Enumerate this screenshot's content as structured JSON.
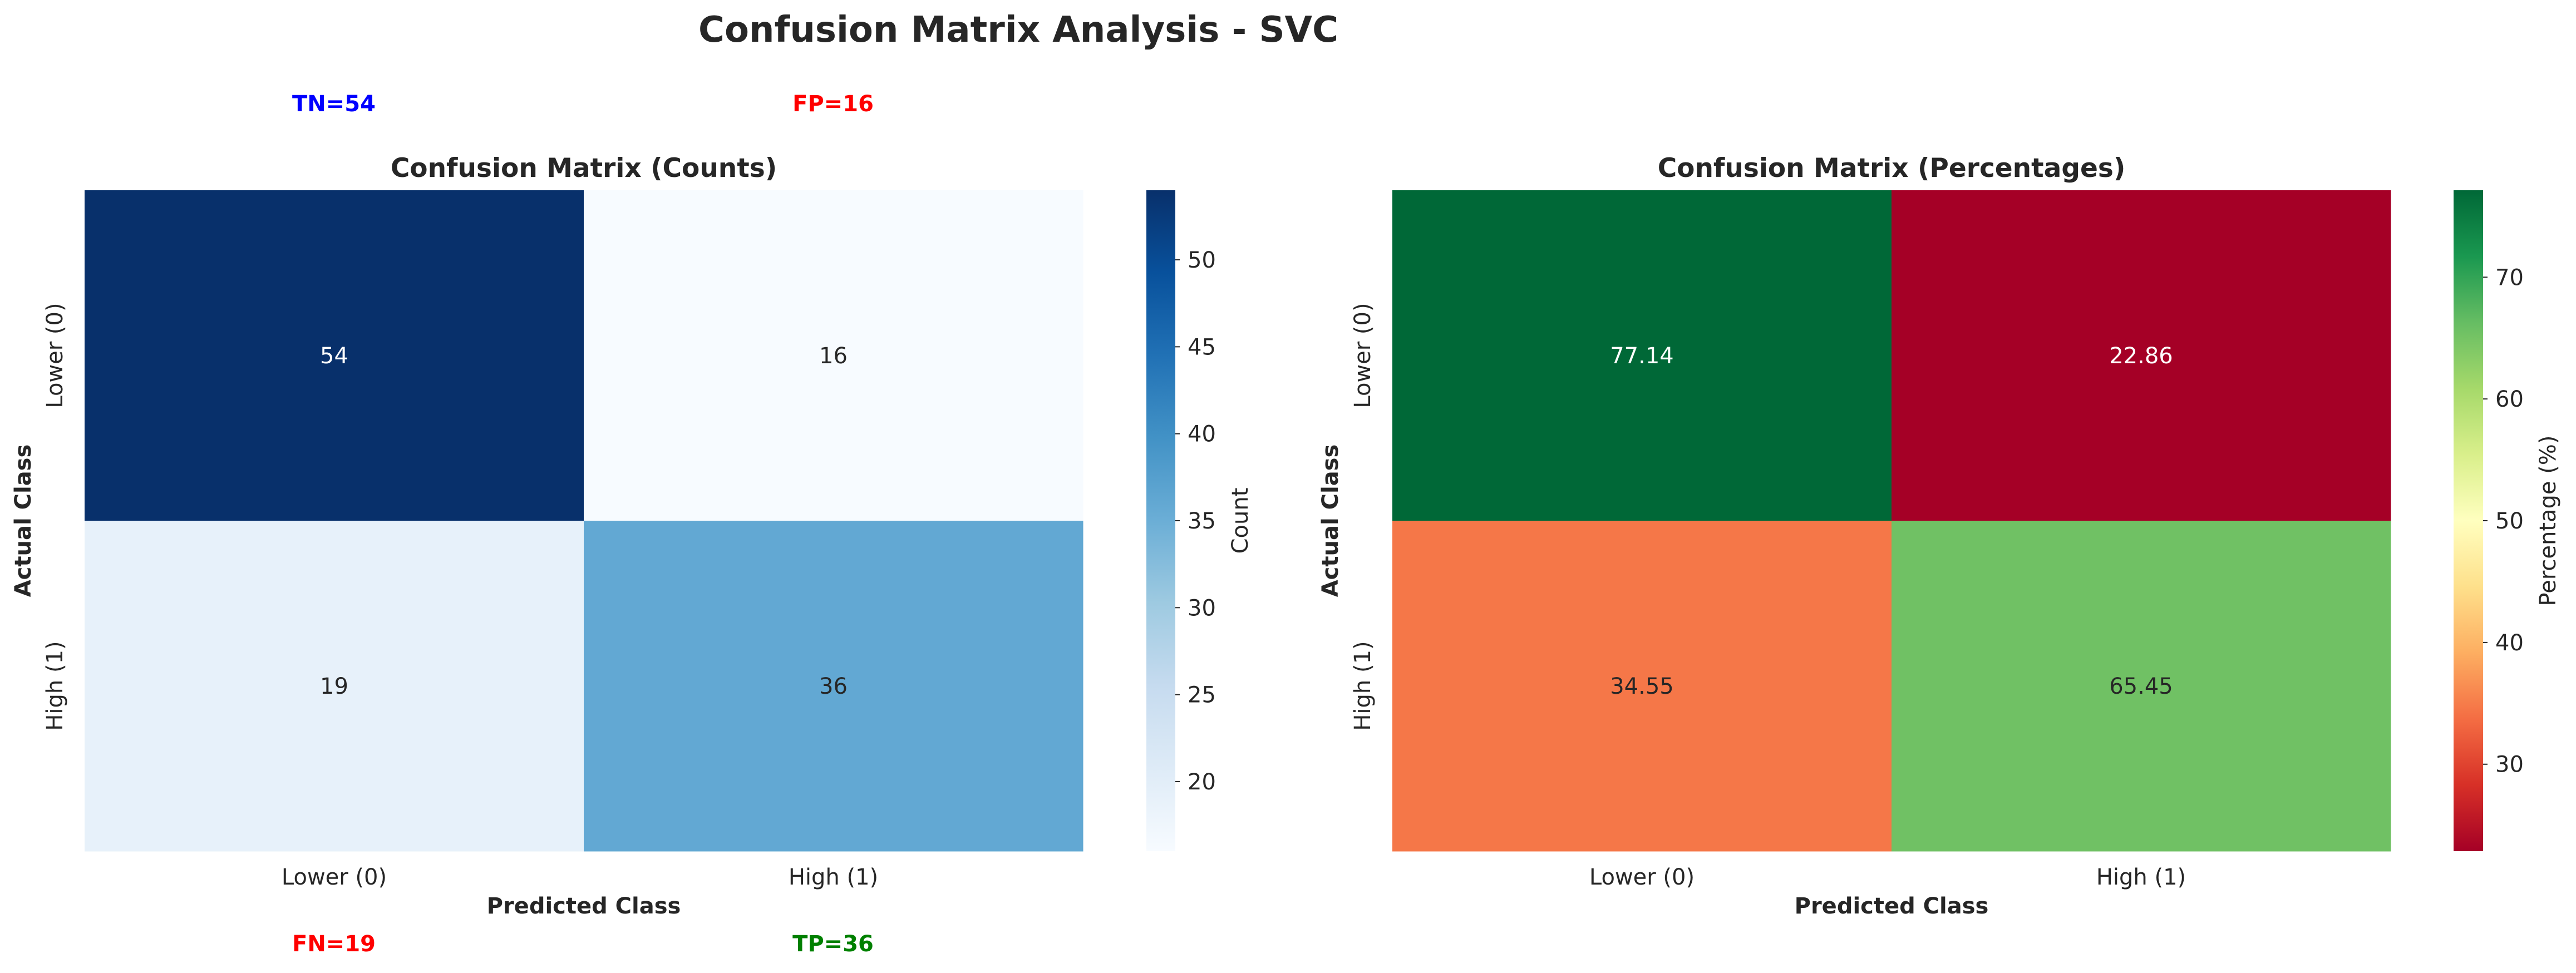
{
  "figure": {
    "title": "Confusion Matrix Analysis - SVC"
  },
  "annotations": [
    {
      "text": "TN=54",
      "color": "#0000ff"
    },
    {
      "text": "FP=16",
      "color": "#ff0000"
    },
    {
      "text": "FN=19",
      "color": "#ff0000"
    },
    {
      "text": "TP=36",
      "color": "#008000"
    }
  ],
  "chart_data": [
    {
      "type": "heatmap",
      "title": "Confusion Matrix (Counts)",
      "xlabel": "Predicted Class",
      "ylabel": "Actual Class",
      "x_categories": [
        "Lower (0)",
        "High (1)"
      ],
      "y_categories": [
        "Lower (0)",
        "High (1)"
      ],
      "values": [
        [
          54,
          16
        ],
        [
          19,
          36
        ]
      ],
      "cell_labels": [
        [
          "54",
          "16"
        ],
        [
          "19",
          "36"
        ]
      ],
      "colormap": "Blues",
      "color_stops": [
        "#f7fbff",
        "#deebf7",
        "#c6dbef",
        "#9ecae1",
        "#6baed6",
        "#4292c6",
        "#2171b5",
        "#08519c",
        "#08306b"
      ],
      "colorbar": {
        "label": "Count",
        "range": [
          16,
          54
        ],
        "ticks": [
          20,
          25,
          30,
          35,
          40,
          45,
          50
        ]
      }
    },
    {
      "type": "heatmap",
      "title": "Confusion Matrix (Percentages)",
      "xlabel": "Predicted Class",
      "ylabel": "Actual Class",
      "x_categories": [
        "Lower (0)",
        "High (1)"
      ],
      "y_categories": [
        "Lower (0)",
        "High (1)"
      ],
      "values": [
        [
          77.14,
          22.86
        ],
        [
          34.55,
          65.45
        ]
      ],
      "cell_labels": [
        [
          "77.14",
          "22.86"
        ],
        [
          "34.55",
          "65.45"
        ]
      ],
      "colormap": "RdYlGn",
      "color_stops": [
        "#a50026",
        "#d73027",
        "#f46d43",
        "#fdae61",
        "#fee08b",
        "#ffffbf",
        "#d9ef8b",
        "#a6d96a",
        "#66bd63",
        "#1a9850",
        "#006837"
      ],
      "colorbar": {
        "label": "Percentage (%)",
        "range": [
          22.86,
          77.14
        ],
        "ticks": [
          30,
          40,
          50,
          60,
          70
        ]
      }
    }
  ]
}
